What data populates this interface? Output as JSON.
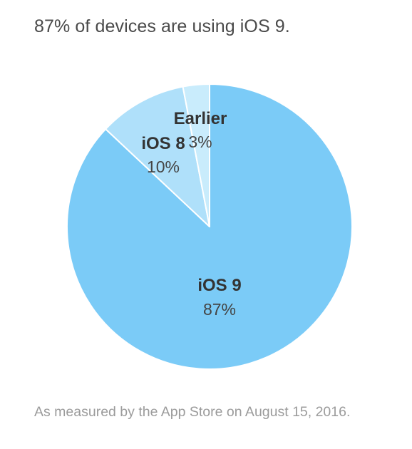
{
  "headline": "87% of devices are using iOS 9.",
  "footnote": "As measured by the App Store on August 15, 2016.",
  "chart_data": {
    "type": "pie",
    "title": "87% of devices are using iOS 9.",
    "slices": [
      {
        "name": "iOS 9",
        "value": 87,
        "label": "87%",
        "color": "#7bcbf7"
      },
      {
        "name": "iOS 8",
        "value": 10,
        "label": "10%",
        "color": "#afe0fa"
      },
      {
        "name": "Earlier",
        "value": 3,
        "label": "3%",
        "color": "#c9ecfc"
      }
    ],
    "start_angle_deg": 0,
    "direction": "clockwise"
  }
}
